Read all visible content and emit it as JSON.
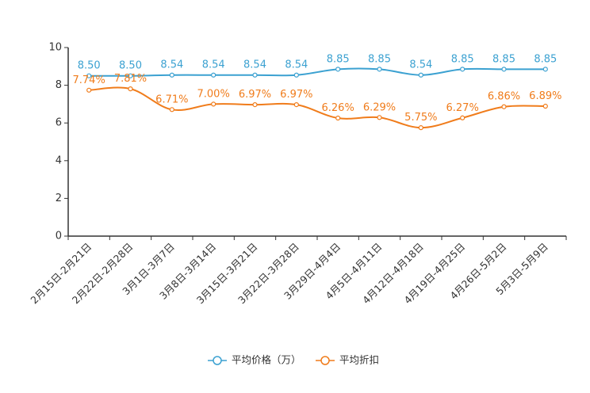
{
  "chart_data": {
    "type": "line",
    "title": "",
    "xlabel": "",
    "ylabel": "",
    "ylim": [
      0,
      10
    ],
    "yticks": [
      0,
      2,
      4,
      6,
      8,
      10
    ],
    "categories": [
      "2月15日-2月21日",
      "2月22日-2月28日",
      "3月1日-3月7日",
      "3月8日-3月14日",
      "3月15日-3月21日",
      "3月22日-3月28日",
      "3月29日-4月4日",
      "4月5日-4月11日",
      "4月12日-4月18日",
      "4月19日-4月25日",
      "4月26日-5月2日",
      "5月3日-5月9日"
    ],
    "series": [
      {
        "name": "平均价格（万）",
        "color": "#3ba1d1",
        "values": [
          8.5,
          8.5,
          8.54,
          8.54,
          8.54,
          8.54,
          8.85,
          8.85,
          8.54,
          8.85,
          8.85,
          8.85
        ],
        "labels": [
          "8.50",
          "8.50",
          "8.54",
          "8.54",
          "8.54",
          "8.54",
          "8.85",
          "8.85",
          "8.54",
          "8.85",
          "8.85",
          "8.85"
        ]
      },
      {
        "name": "平均折扣",
        "color": "#f07c1b",
        "values": [
          7.74,
          7.81,
          6.71,
          7.0,
          6.97,
          6.97,
          6.26,
          6.29,
          5.75,
          6.27,
          6.86,
          6.89
        ],
        "labels": [
          "7.74%",
          "7.81%",
          "6.71%",
          "7.00%",
          "6.97%",
          "6.97%",
          "6.26%",
          "6.29%",
          "5.75%",
          "6.27%",
          "6.86%",
          "6.89%"
        ]
      }
    ],
    "legend_position": "bottom"
  }
}
